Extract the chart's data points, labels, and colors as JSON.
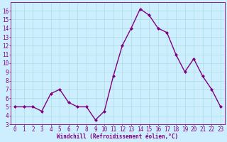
{
  "x": [
    0,
    1,
    2,
    3,
    4,
    5,
    6,
    7,
    8,
    9,
    10,
    11,
    12,
    13,
    14,
    15,
    16,
    17,
    18,
    19,
    20,
    21,
    22,
    23
  ],
  "y": [
    5.0,
    5.0,
    5.0,
    4.5,
    6.5,
    7.0,
    5.5,
    5.0,
    5.0,
    3.5,
    4.5,
    8.5,
    12.0,
    14.0,
    16.2,
    15.5,
    14.0,
    13.5,
    11.0,
    9.0,
    10.5,
    8.5,
    7.0,
    5.0
  ],
  "line_color": "#800080",
  "marker": "D",
  "markersize": 2,
  "linewidth": 1.0,
  "bg_color": "#cceeff",
  "grid_color": "#aadddd",
  "xlabel": "Windchill (Refroidissement éolien,°C)",
  "xlabel_fontsize": 5.5,
  "tick_fontsize": 5.5,
  "ylim": [
    3,
    17
  ],
  "xlim": [
    -0.5,
    23.5
  ],
  "yticks": [
    3,
    4,
    5,
    6,
    7,
    8,
    9,
    10,
    11,
    12,
    13,
    14,
    15,
    16
  ],
  "xticks": [
    0,
    1,
    2,
    3,
    4,
    5,
    6,
    7,
    8,
    9,
    10,
    11,
    12,
    13,
    14,
    15,
    16,
    17,
    18,
    19,
    20,
    21,
    22,
    23
  ]
}
